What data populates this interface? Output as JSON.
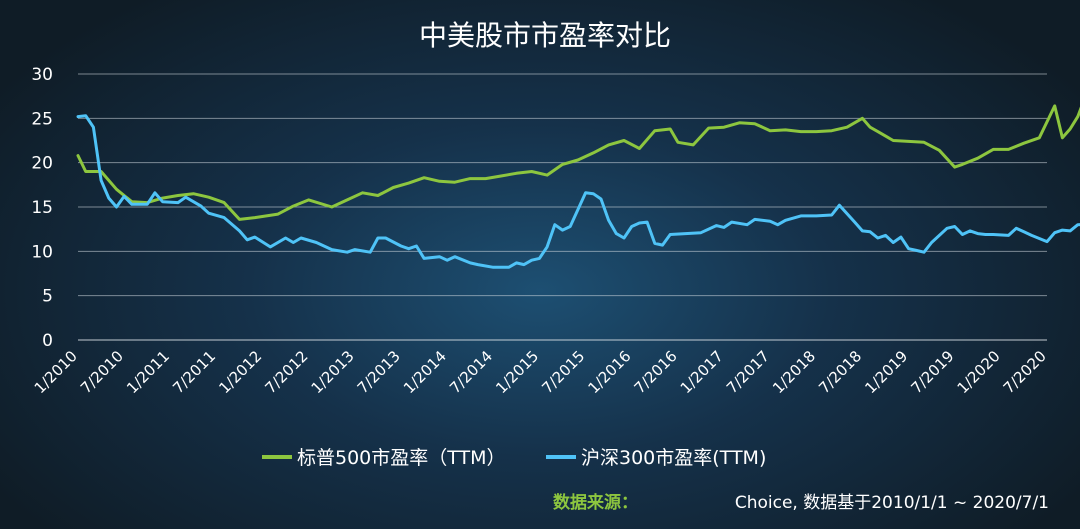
{
  "chart_data": {
    "type": "line",
    "title": "中美股市市盈率对比",
    "ylim": [
      0,
      30
    ],
    "yticks": [
      0,
      5,
      10,
      15,
      20,
      25,
      30
    ],
    "xlim": [
      "2010-01",
      "2020-07"
    ],
    "xtick_labels": [
      "1/2010",
      "7/2010",
      "1/2011",
      "7/2011",
      "1/2012",
      "7/2012",
      "1/2013",
      "7/2013",
      "1/2014",
      "7/2014",
      "1/2015",
      "7/2015",
      "1/2016",
      "7/2016",
      "1/2017",
      "7/2017",
      "1/2018",
      "7/2018",
      "1/2019",
      "7/2019",
      "1/2020",
      "7/2020"
    ],
    "xtick_dates": [
      "2010-01",
      "2010-07",
      "2011-01",
      "2011-07",
      "2012-01",
      "2012-07",
      "2013-01",
      "2013-07",
      "2014-01",
      "2014-07",
      "2015-01",
      "2015-07",
      "2016-01",
      "2016-07",
      "2017-01",
      "2017-07",
      "2018-01",
      "2018-07",
      "2019-01",
      "2019-07",
      "2020-01",
      "2020-07"
    ],
    "grid": true,
    "legend_position": "bottom",
    "series": [
      {
        "name": "标普500市盈率（TTM）",
        "color": "#8dc63f",
        "points": [
          [
            "2010-01",
            20.8
          ],
          [
            "2010-02",
            19.0
          ],
          [
            "2010-04",
            19.0
          ],
          [
            "2010-06",
            17.0
          ],
          [
            "2010-08",
            15.6
          ],
          [
            "2010-10",
            15.5
          ],
          [
            "2010-12",
            16.0
          ],
          [
            "2011-02",
            16.3
          ],
          [
            "2011-04",
            16.5
          ],
          [
            "2011-06",
            16.1
          ],
          [
            "2011-08",
            15.5
          ],
          [
            "2011-10",
            13.6
          ],
          [
            "2011-12",
            13.8
          ],
          [
            "2012-03",
            14.2
          ],
          [
            "2012-05",
            15.1
          ],
          [
            "2012-07",
            15.8
          ],
          [
            "2012-10",
            15.0
          ],
          [
            "2012-12",
            15.8
          ],
          [
            "2013-02",
            16.6
          ],
          [
            "2013-04",
            16.3
          ],
          [
            "2013-06",
            17.2
          ],
          [
            "2013-08",
            17.7
          ],
          [
            "2013-10",
            18.3
          ],
          [
            "2013-12",
            17.9
          ],
          [
            "2014-02",
            17.8
          ],
          [
            "2014-04",
            18.2
          ],
          [
            "2014-06",
            18.2
          ],
          [
            "2014-08",
            18.5
          ],
          [
            "2014-10",
            18.8
          ],
          [
            "2014-12",
            19.0
          ],
          [
            "2015-02",
            18.6
          ],
          [
            "2015-04",
            19.8
          ],
          [
            "2015-06",
            20.3
          ],
          [
            "2015-08",
            21.1
          ],
          [
            "2015-10",
            22.0
          ],
          [
            "2015-12",
            22.5
          ],
          [
            "2016-02",
            21.6
          ],
          [
            "2016-04",
            23.6
          ],
          [
            "2016-06",
            23.8
          ],
          [
            "2016-07",
            22.3
          ],
          [
            "2016-09",
            22.0
          ],
          [
            "2016-11",
            23.9
          ],
          [
            "2017-01",
            24.0
          ],
          [
            "2017-03",
            24.5
          ],
          [
            "2017-05",
            24.4
          ],
          [
            "2017-07",
            23.6
          ],
          [
            "2017-09",
            23.7
          ],
          [
            "2017-11",
            23.5
          ],
          [
            "2018-01",
            23.5
          ],
          [
            "2018-03",
            23.6
          ],
          [
            "2018-05",
            24.0
          ],
          [
            "2018-07",
            25.0
          ],
          [
            "2018-08",
            24.0
          ],
          [
            "2018-09",
            23.5
          ],
          [
            "2018-11",
            22.5
          ],
          [
            "2019-01",
            22.4
          ],
          [
            "2019-03",
            22.3
          ],
          [
            "2019-05",
            21.4
          ],
          [
            "2019-07",
            19.5
          ],
          [
            "2019-08",
            19.8
          ],
          [
            "2019-10",
            20.5
          ],
          [
            "2019-12",
            21.5
          ],
          [
            "2020-02",
            21.5
          ],
          [
            "2020-04",
            22.2
          ],
          [
            "2020-06",
            22.8
          ],
          [
            "2020-08",
            26.4
          ],
          [
            "2020-09",
            22.8
          ],
          [
            "2020-10",
            23.8
          ],
          [
            "2020-11",
            25.2
          ],
          [
            "2020-12",
            27.5
          ],
          [
            "2021-01",
            27.0
          ]
        ]
      },
      {
        "name": "沪深300市盈率(TTM)",
        "color": "#4fc3f7",
        "points": [
          [
            "2010-01",
            25.2
          ],
          [
            "2010-02",
            25.3
          ],
          [
            "2010-03",
            24.0
          ],
          [
            "2010-04",
            18.0
          ],
          [
            "2010-05",
            16.0
          ],
          [
            "2010-06",
            15.0
          ],
          [
            "2010-07",
            16.2
          ],
          [
            "2010-08",
            15.3
          ],
          [
            "2010-10",
            15.3
          ],
          [
            "2010-11",
            16.6
          ],
          [
            "2010-12",
            15.6
          ],
          [
            "2011-02",
            15.5
          ],
          [
            "2011-03",
            16.1
          ],
          [
            "2011-05",
            15.1
          ],
          [
            "2011-06",
            14.3
          ],
          [
            "2011-08",
            13.8
          ],
          [
            "2011-10",
            12.3
          ],
          [
            "2011-11",
            11.3
          ],
          [
            "2011-12",
            11.6
          ],
          [
            "2012-02",
            10.5
          ],
          [
            "2012-04",
            11.5
          ],
          [
            "2012-05",
            11.0
          ],
          [
            "2012-06",
            11.5
          ],
          [
            "2012-08",
            11.0
          ],
          [
            "2012-10",
            10.2
          ],
          [
            "2012-12",
            9.9
          ],
          [
            "2013-01",
            10.2
          ],
          [
            "2013-03",
            9.9
          ],
          [
            "2013-04",
            11.5
          ],
          [
            "2013-05",
            11.5
          ],
          [
            "2013-07",
            10.6
          ],
          [
            "2013-08",
            10.3
          ],
          [
            "2013-09",
            10.6
          ],
          [
            "2013-10",
            9.2
          ],
          [
            "2013-12",
            9.4
          ],
          [
            "2014-01",
            9.0
          ],
          [
            "2014-02",
            9.4
          ],
          [
            "2014-04",
            8.7
          ],
          [
            "2014-05",
            8.5
          ],
          [
            "2014-07",
            8.2
          ],
          [
            "2014-09",
            8.2
          ],
          [
            "2014-10",
            8.7
          ],
          [
            "2014-11",
            8.5
          ],
          [
            "2014-12",
            9.0
          ],
          [
            "2015-01",
            9.2
          ],
          [
            "2015-02",
            10.5
          ],
          [
            "2015-03",
            13.0
          ],
          [
            "2015-04",
            12.4
          ],
          [
            "2015-05",
            12.8
          ],
          [
            "2015-07",
            16.6
          ],
          [
            "2015-08",
            16.5
          ],
          [
            "2015-09",
            15.9
          ],
          [
            "2015-10",
            13.5
          ],
          [
            "2015-11",
            12.0
          ],
          [
            "2015-12",
            11.5
          ],
          [
            "2016-01",
            12.8
          ],
          [
            "2016-02",
            13.2
          ],
          [
            "2016-03",
            13.3
          ],
          [
            "2016-04",
            10.9
          ],
          [
            "2016-05",
            10.7
          ],
          [
            "2016-06",
            11.9
          ],
          [
            "2016-08",
            12.0
          ],
          [
            "2016-10",
            12.1
          ],
          [
            "2016-12",
            12.9
          ],
          [
            "2017-01",
            12.7
          ],
          [
            "2017-02",
            13.3
          ],
          [
            "2017-04",
            13.0
          ],
          [
            "2017-05",
            13.6
          ],
          [
            "2017-07",
            13.4
          ],
          [
            "2017-08",
            13.0
          ],
          [
            "2017-09",
            13.5
          ],
          [
            "2017-11",
            14.0
          ],
          [
            "2018-01",
            14.0
          ],
          [
            "2018-03",
            14.1
          ],
          [
            "2018-04",
            15.2
          ],
          [
            "2018-06",
            13.3
          ],
          [
            "2018-07",
            12.3
          ],
          [
            "2018-08",
            12.2
          ],
          [
            "2018-09",
            11.5
          ],
          [
            "2018-10",
            11.8
          ],
          [
            "2018-11",
            11.0
          ],
          [
            "2018-12",
            11.6
          ],
          [
            "2019-01",
            10.3
          ],
          [
            "2019-02",
            10.1
          ],
          [
            "2019-03",
            9.9
          ],
          [
            "2019-04",
            11.0
          ],
          [
            "2019-06",
            12.6
          ],
          [
            "2019-07",
            12.8
          ],
          [
            "2019-08",
            11.9
          ],
          [
            "2019-09",
            12.3
          ],
          [
            "2019-10",
            12.0
          ],
          [
            "2019-11",
            11.9
          ],
          [
            "2019-12",
            11.9
          ],
          [
            "2020-02",
            11.8
          ],
          [
            "2020-03",
            12.6
          ],
          [
            "2020-04",
            12.2
          ],
          [
            "2020-05",
            11.8
          ],
          [
            "2020-07",
            11.1
          ],
          [
            "2020-08",
            12.1
          ],
          [
            "2020-09",
            12.4
          ],
          [
            "2020-10",
            12.3
          ],
          [
            "2020-11",
            13.0
          ],
          [
            "2021-01",
            13.1
          ]
        ]
      }
    ],
    "source_label": "数据来源：",
    "source_text": "Choice, 数据基于2010/1/1 ~ 2020/7/1"
  }
}
